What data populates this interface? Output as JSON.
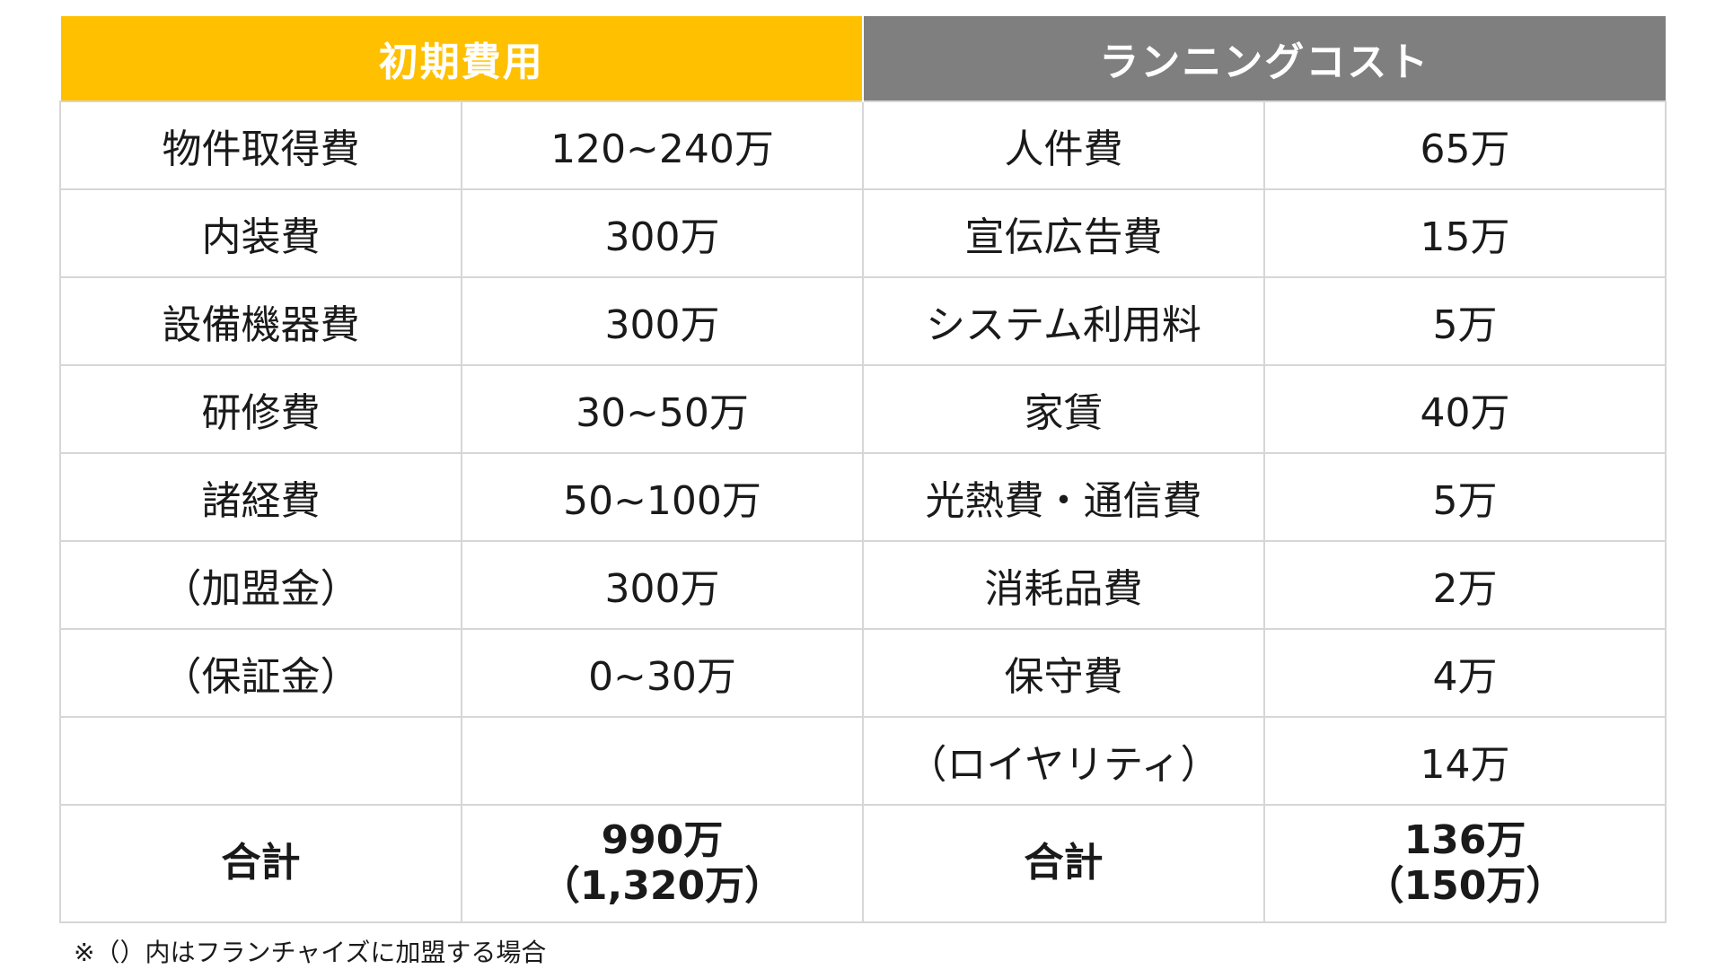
{
  "headers": {
    "initial": "初期費用",
    "running": "ランニングコスト"
  },
  "rows": [
    {
      "initial_item": "物件取得費",
      "initial_value": "120~240万",
      "running_item": "人件費",
      "running_value": "65万"
    },
    {
      "initial_item": "内装費",
      "initial_value": "300万",
      "running_item": "宣伝広告費",
      "running_value": "15万"
    },
    {
      "initial_item": "設備機器費",
      "initial_value": "300万",
      "running_item": "システム利用料",
      "running_value": "5万"
    },
    {
      "initial_item": "研修費",
      "initial_value": "30~50万",
      "running_item": "家賃",
      "running_value": "40万"
    },
    {
      "initial_item": "諸経費",
      "initial_value": "50~100万",
      "running_item": "光熱費・通信費",
      "running_value": "5万"
    },
    {
      "initial_item": "（加盟金）",
      "initial_value": "300万",
      "running_item": "消耗品費",
      "running_value": "2万"
    },
    {
      "initial_item": "（保証金）",
      "initial_value": "0~30万",
      "running_item": "保守費",
      "running_value": "4万"
    },
    {
      "initial_item": "",
      "initial_value": "",
      "running_item": "（ロイヤリティ）",
      "running_value": "14万"
    }
  ],
  "totals": {
    "initial_label": "合計",
    "initial_value": "990万",
    "initial_value_franchise": "（1,320万）",
    "running_label": "合計",
    "running_value": "136万",
    "running_value_franchise": "（150万）"
  },
  "footnote": "※（）内はフランチャイズに加盟する場合",
  "colors": {
    "initial_header": "#FFC000",
    "running_header": "#7F7F7F"
  }
}
